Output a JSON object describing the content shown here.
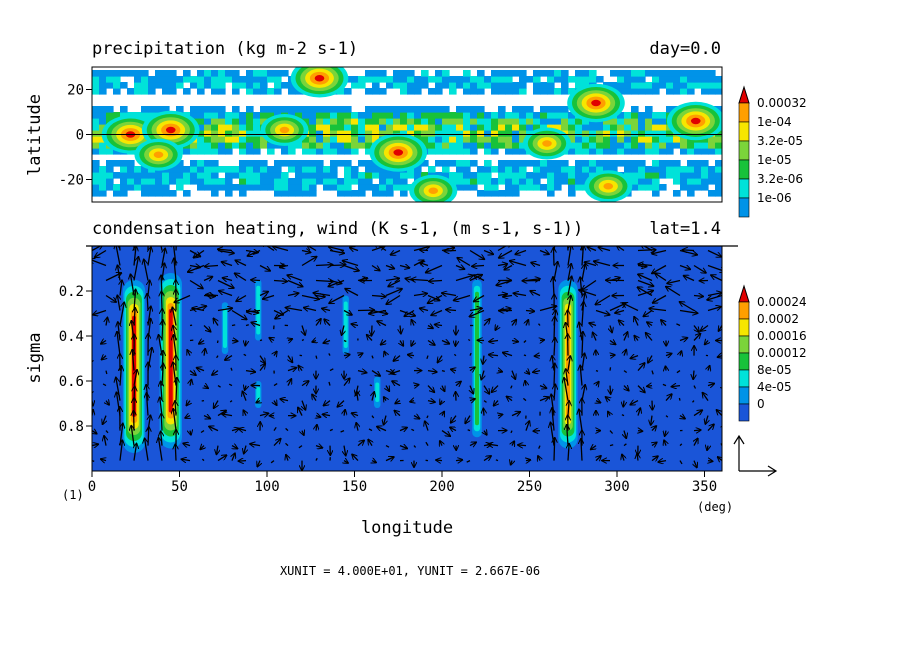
{
  "chart_data": [
    {
      "type": "heatmap",
      "title": "precipitation (kg m-2 s-1)",
      "title_right": "day=0.0",
      "xlim": [
        0,
        360
      ],
      "ylim": [
        -30,
        30
      ],
      "ylabel": "latitude",
      "y_ticks": [
        "20",
        "0",
        "-20"
      ],
      "y_tick_values": [
        20,
        0,
        -20
      ],
      "equator_line": true,
      "legend_levels": [
        "0.00032",
        "1e-04",
        "3.2e-05",
        "1e-05",
        "3.2e-06",
        "1e-06"
      ],
      "legend_colors": [
        "#ff9f00",
        "#f7e600",
        "#7bd43a",
        "#18c23a",
        "#00e2d9",
        "#0093e8"
      ],
      "top_arrow_color": "#e00000",
      "background": "#ffffff",
      "bands": [
        {
          "lat_center": 0,
          "lat_halfwidth": 12,
          "density": 0.75
        },
        {
          "lat_center": 22,
          "lat_halfwidth": 8,
          "density": 0.35
        },
        {
          "lat_center": -20,
          "lat_halfwidth": 10,
          "density": 0.38
        }
      ],
      "hotspots": [
        {
          "lon": 22,
          "lat": 0,
          "level": 5
        },
        {
          "lon": 45,
          "lat": 2,
          "level": 5
        },
        {
          "lon": 130,
          "lat": 25,
          "level": 5
        },
        {
          "lon": 175,
          "lat": -8,
          "level": 5
        },
        {
          "lon": 288,
          "lat": 14,
          "level": 5
        },
        {
          "lon": 345,
          "lat": 6,
          "level": 5
        },
        {
          "lon": 38,
          "lat": -9,
          "level": 4
        },
        {
          "lon": 110,
          "lat": 2,
          "level": 4
        },
        {
          "lon": 260,
          "lat": -4,
          "level": 4
        },
        {
          "lon": 195,
          "lat": -25,
          "level": 4
        },
        {
          "lon": 295,
          "lat": -23,
          "level": 4
        }
      ]
    },
    {
      "type": "heatmap",
      "title": "condensation heating, wind (K s-1, (m s-1, s-1))",
      "title_right": "lat=1.4",
      "xlabel": "longitude",
      "ylabel": "sigma",
      "xlim": [
        0,
        360
      ],
      "ylim": [
        0,
        1
      ],
      "x_ticks": [
        "0",
        "50",
        "100",
        "150",
        "200",
        "250",
        "300",
        "350"
      ],
      "x_tick_values": [
        0,
        50,
        100,
        150,
        200,
        250,
        300,
        350
      ],
      "x_unit_label": "(deg)",
      "corner_label": "(1)",
      "y_ticks": [
        "0.2",
        "0.4",
        "0.6",
        "0.8"
      ],
      "y_tick_values": [
        0.2,
        0.4,
        0.6,
        0.8
      ],
      "legend_levels": [
        "0.00024",
        "0.0002",
        "0.00016",
        "0.00012",
        "8e-05",
        "4e-05",
        "0"
      ],
      "legend_colors": [
        "#ff9f00",
        "#f7e600",
        "#7bd43a",
        "#18c23a",
        "#00e2d9",
        "#0093e8",
        "#1a55d8"
      ],
      "top_arrow_color": "#e00000",
      "background": "#1a55d8",
      "plumes": [
        {
          "lon": 24,
          "sigma_top": 0.15,
          "sigma_bottom": 0.92,
          "intensity": 6
        },
        {
          "lon": 45,
          "sigma_top": 0.12,
          "sigma_bottom": 0.9,
          "intensity": 6
        },
        {
          "lon": 272,
          "sigma_top": 0.15,
          "sigma_bottom": 0.9,
          "intensity": 5
        },
        {
          "lon": 220,
          "sigma_top": 0.15,
          "sigma_bottom": 0.85,
          "intensity": 2
        },
        {
          "lon": 95,
          "sigma_top": 0.15,
          "sigma_bottom": 0.42,
          "intensity": 1
        },
        {
          "lon": 76,
          "sigma_top": 0.25,
          "sigma_bottom": 0.48,
          "intensity": 1
        },
        {
          "lon": 145,
          "sigma_top": 0.22,
          "sigma_bottom": 0.48,
          "intensity": 1
        },
        {
          "lon": 163,
          "sigma_top": 0.58,
          "sigma_bottom": 0.72,
          "intensity": 1
        },
        {
          "lon": 95,
          "sigma_top": 0.6,
          "sigma_bottom": 0.72,
          "intensity": 1
        }
      ],
      "wind": {
        "grid_lon_spacing": 8,
        "grid_sigma_spacing": 0.0667,
        "x_unit": "XUNIT = 4.000E+01, YUNIT = 2.667E-06"
      }
    }
  ]
}
